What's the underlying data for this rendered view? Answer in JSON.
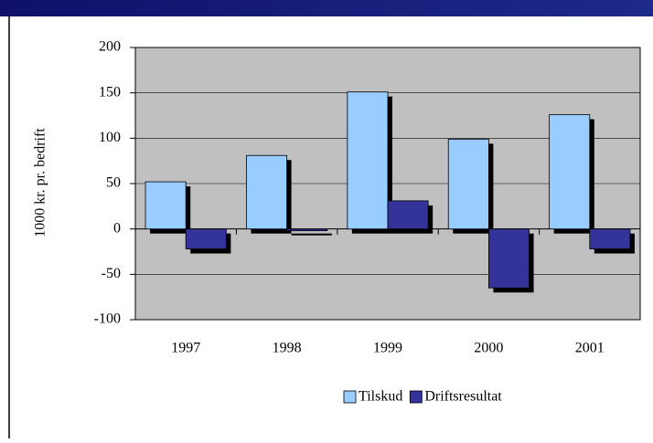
{
  "chart_data": {
    "type": "bar",
    "y_label": "1000 kr. pr. bedrift",
    "categories": [
      "1997",
      "1998",
      "1999",
      "2000",
      "2001"
    ],
    "series": [
      {
        "name": "Tilskud",
        "color": "#99ccff",
        "values": [
          52,
          81,
          151,
          99,
          126
        ]
      },
      {
        "name": "Driftsresultat",
        "color": "#333399",
        "values": [
          -22,
          -2,
          31,
          -65,
          -22
        ]
      }
    ],
    "ylim": [
      -100,
      200
    ],
    "yticks": [
      -100,
      -50,
      0,
      50,
      100,
      150,
      200
    ],
    "grid": true,
    "legend": "bottom",
    "plot_background": "#c0c0c0"
  }
}
